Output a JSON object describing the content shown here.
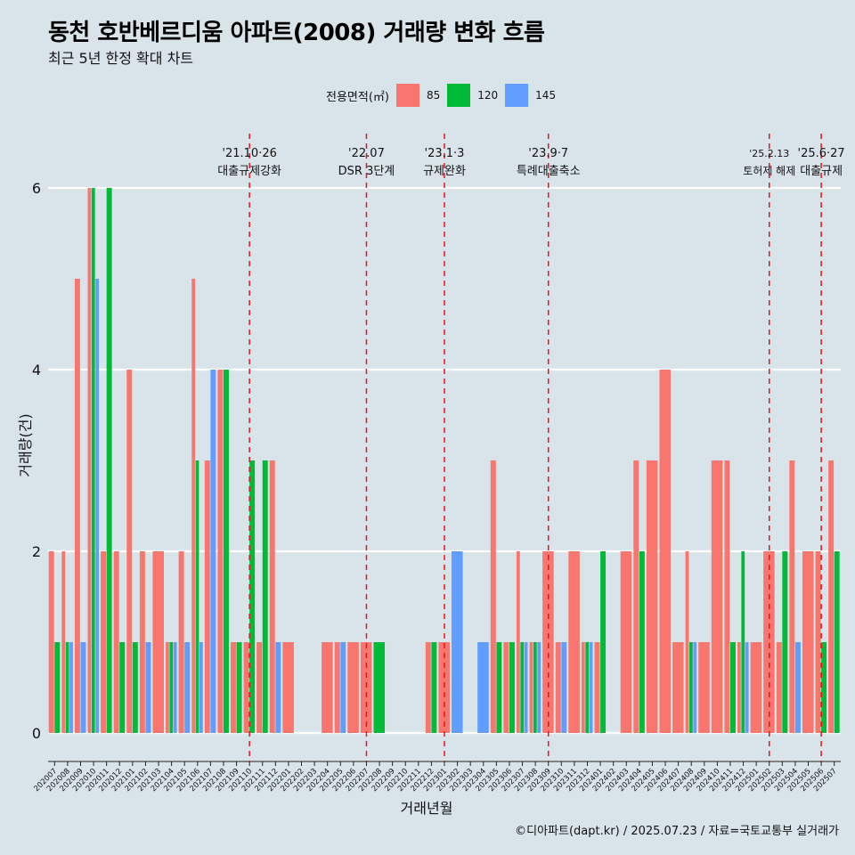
{
  "header": {
    "title": "동천 호반베르디움 아파트(2008) 거래량 변화 흐름",
    "subtitle": "최근 5년 한정 확대 차트"
  },
  "legend": {
    "title": "전용면적(㎡)",
    "items": [
      {
        "label": "85",
        "color": "#f8766d"
      },
      {
        "label": "120",
        "color": "#00ba38"
      },
      {
        "label": "145",
        "color": "#619cff"
      }
    ]
  },
  "caption": "©디아파트(dapt.kr) / 2025.07.23 / 자료=국토교통부 실거래가",
  "chart_data": {
    "type": "bar",
    "xlabel": "거래년월",
    "ylabel": "거래량(건)",
    "ylim": [
      0,
      6
    ],
    "yticks": [
      0,
      2,
      4,
      6
    ],
    "grid": true,
    "legend_position": "top",
    "categories": [
      "202007",
      "202008",
      "202009",
      "202010",
      "202011",
      "202012",
      "202101",
      "202102",
      "202103",
      "202104",
      "202105",
      "202106",
      "202107",
      "202108",
      "202109",
      "202110",
      "202111",
      "202112",
      "202201",
      "202202",
      "202203",
      "202204",
      "202205",
      "202206",
      "202207",
      "202208",
      "202209",
      "202210",
      "202211",
      "202212",
      "202301",
      "202302",
      "202303",
      "202304",
      "202305",
      "202306",
      "202307",
      "202308",
      "202309",
      "202310",
      "202311",
      "202312",
      "202401",
      "202402",
      "202403",
      "202404",
      "202405",
      "202406",
      "202407",
      "202408",
      "202409",
      "202410",
      "202411",
      "202412",
      "202501",
      "202502",
      "202503",
      "202504",
      "202505",
      "202506",
      "202507"
    ],
    "series": [
      {
        "name": "85",
        "color": "#f8766d",
        "values": [
          2,
          2,
          5,
          6,
          2,
          2,
          4,
          2,
          2,
          1,
          2,
          5,
          3,
          4,
          1,
          1,
          1,
          3,
          1,
          null,
          null,
          1,
          1,
          1,
          1,
          null,
          null,
          null,
          null,
          1,
          1,
          null,
          null,
          null,
          3,
          1,
          2,
          1,
          2,
          1,
          2,
          1,
          1,
          null,
          2,
          3,
          3,
          4,
          1,
          2,
          1,
          3,
          3,
          1,
          1,
          2,
          1,
          3,
          2,
          2,
          3
        ]
      },
      {
        "name": "120",
        "color": "#00ba38",
        "values": [
          1,
          1,
          null,
          6,
          6,
          1,
          1,
          null,
          null,
          1,
          null,
          3,
          null,
          4,
          1,
          3,
          3,
          null,
          null,
          null,
          null,
          null,
          null,
          null,
          null,
          1,
          null,
          null,
          null,
          1,
          null,
          null,
          null,
          null,
          1,
          1,
          1,
          1,
          null,
          null,
          null,
          1,
          2,
          null,
          null,
          2,
          null,
          null,
          null,
          1,
          null,
          null,
          1,
          2,
          null,
          null,
          2,
          null,
          null,
          1,
          2
        ]
      },
      {
        "name": "145",
        "color": "#619cff",
        "values": [
          null,
          1,
          1,
          5,
          null,
          null,
          null,
          1,
          null,
          1,
          1,
          1,
          4,
          null,
          null,
          null,
          null,
          1,
          null,
          null,
          null,
          null,
          1,
          null,
          null,
          null,
          null,
          null,
          null,
          null,
          null,
          2,
          null,
          1,
          null,
          null,
          1,
          1,
          null,
          1,
          null,
          1,
          null,
          null,
          null,
          null,
          null,
          null,
          null,
          1,
          null,
          null,
          null,
          1,
          null,
          null,
          null,
          1,
          null,
          null,
          null
        ]
      }
    ],
    "annotations": [
      {
        "x": "202110",
        "date": "'21.10·26",
        "label": "대출규제강화"
      },
      {
        "x": "202207",
        "date": "'22.07",
        "label": "DSR 3단계"
      },
      {
        "x": "202301",
        "date": "'23.1·3",
        "label": "규제완화"
      },
      {
        "x": "202309",
        "date": "'23.9·7",
        "label": "특례대출축소"
      },
      {
        "x": "202502",
        "date": "'25.2.13",
        "label": "토허제 해제"
      },
      {
        "x": "202506",
        "date": "'25.6·27",
        "label": "대출규제"
      }
    ]
  }
}
